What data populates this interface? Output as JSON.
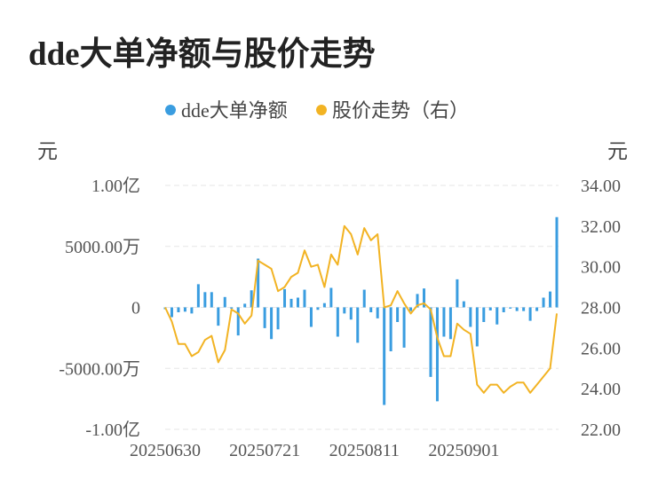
{
  "page": {
    "title": "dde大单净额与股价走势"
  },
  "legend": [
    {
      "label": "dde大单净额",
      "color": "#3a9de0"
    },
    {
      "label": "股价走势（右）",
      "color": "#f2b323"
    }
  ],
  "axes": {
    "left_unit": "元",
    "right_unit": "元",
    "left_ticks": [
      {
        "value": 100000000,
        "label": "1.00亿"
      },
      {
        "value": 50000000,
        "label": "5000.00万"
      },
      {
        "value": 0,
        "label": "0"
      },
      {
        "value": -50000000,
        "label": "-5000.00万"
      },
      {
        "value": -100000000,
        "label": "-1.00亿"
      }
    ],
    "right_ticks": [
      {
        "value": 34,
        "label": "34.00"
      },
      {
        "value": 32,
        "label": "32.00"
      },
      {
        "value": 30,
        "label": "30.00"
      },
      {
        "value": 28,
        "label": "28.00"
      },
      {
        "value": 26,
        "label": "26.00"
      },
      {
        "value": 24,
        "label": "24.00"
      },
      {
        "value": 22,
        "label": "22.00"
      }
    ],
    "x_ticks": [
      {
        "index": 0,
        "label": "20250630"
      },
      {
        "index": 15,
        "label": "20250721"
      },
      {
        "index": 30,
        "label": "20250811"
      },
      {
        "index": 45,
        "label": "20250901"
      }
    ]
  },
  "chart_data": {
    "type": "bar+line",
    "left_ylim": [
      -100000000,
      100000000
    ],
    "right_ylim": [
      22,
      34
    ],
    "grid": "horizontal-dashed",
    "legend_position": "top-center",
    "series": [
      {
        "name": "dde大单净额",
        "type": "bar",
        "axis": "left",
        "color": "#3a9de0",
        "values": [
          -1500000,
          -8000000,
          -4000000,
          -3500000,
          -5000000,
          19000000,
          12500000,
          12500000,
          -15000000,
          8500000,
          -1000000,
          -23000000,
          3000000,
          14000000,
          40000000,
          -17000000,
          -26000000,
          -18000000,
          15000000,
          7000000,
          8000000,
          14500000,
          -16000000,
          -2000000,
          3500000,
          16000000,
          -24000000,
          -5000000,
          -10000000,
          -29000000,
          14500000,
          -4000000,
          -9000000,
          -80000000,
          -36000000,
          -12000000,
          -33000000,
          -3000000,
          11000000,
          15500000,
          -57000000,
          -77000000,
          -24000000,
          -26000000,
          23000000,
          5000000,
          -16000000,
          -32000000,
          -12000000,
          -2500000,
          -14000000,
          -4000000,
          -1000000,
          -3000000,
          -3000000,
          -11000000,
          -3000000,
          8000000,
          13000000,
          74000000
        ],
        "note_x": "60 trading days from 20250630"
      },
      {
        "name": "股价走势（右）",
        "type": "line",
        "axis": "right",
        "color": "#f2b323",
        "values": [
          28.0,
          27.3,
          26.2,
          26.2,
          25.6,
          25.8,
          26.4,
          26.6,
          25.3,
          25.9,
          27.9,
          27.7,
          27.2,
          27.6,
          30.3,
          30.1,
          29.9,
          28.8,
          29.0,
          29.5,
          29.7,
          30.8,
          30.0,
          30.1,
          29.0,
          30.6,
          30.1,
          32.0,
          31.6,
          30.6,
          31.9,
          31.3,
          31.6,
          28.0,
          28.1,
          28.8,
          28.2,
          27.7,
          28.1,
          28.2,
          27.9,
          26.5,
          25.6,
          25.6,
          27.2,
          26.9,
          26.7,
          24.2,
          23.8,
          24.2,
          24.2,
          23.8,
          24.1,
          24.3,
          24.3,
          23.8,
          24.2,
          24.6,
          25.0,
          27.7
        ]
      }
    ]
  }
}
